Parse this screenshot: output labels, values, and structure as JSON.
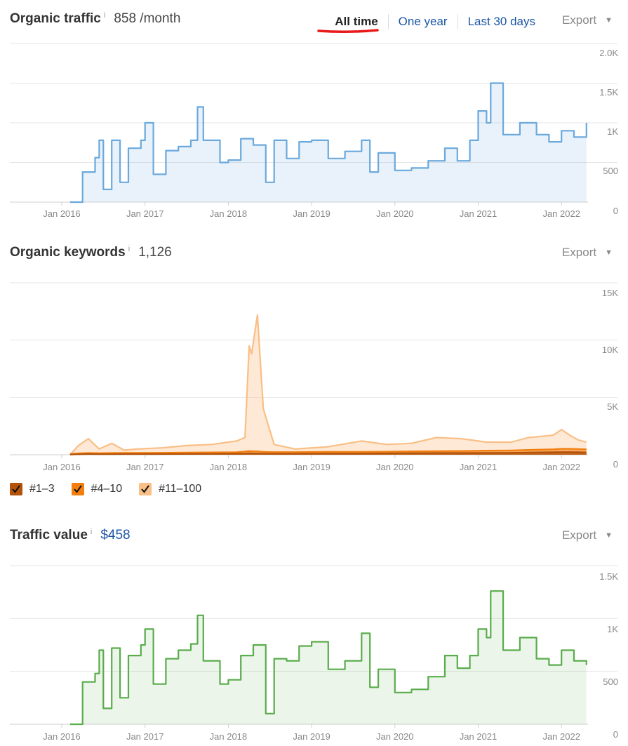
{
  "range_tabs": {
    "all_time": "All time",
    "one_year": "One year",
    "last_30_days": "Last 30 days"
  },
  "colors": {
    "link": "#1c57a5",
    "traffic": "#6aa9dd",
    "keywords_top3": "#b3520a",
    "keywords_4_10": "#f27e0e",
    "keywords_11_100": "#f9bf86",
    "value": "#5aac4c",
    "active_underline": "#e8191a"
  },
  "x_ticks": [
    "Jan 2016",
    "Jan 2017",
    "Jan 2018",
    "Jan 2019",
    "Jan 2020",
    "Jan 2021",
    "Jan 2022"
  ],
  "organic_traffic": {
    "title": "Organic traffic",
    "info": "i",
    "value": "858 /month",
    "export": "Export",
    "y_ticks": [
      "2.0K",
      "1.5K",
      "1K",
      "500",
      "0"
    ]
  },
  "organic_keywords": {
    "title": "Organic keywords",
    "info": "i",
    "value": "1,126",
    "export": "Export",
    "y_ticks": [
      "15K",
      "10K",
      "5K",
      "0"
    ],
    "legend": [
      "#1–3",
      "#4–10",
      "#11–100"
    ]
  },
  "traffic_value": {
    "title": "Traffic value",
    "info": "i",
    "value": "$458",
    "export": "Export",
    "y_ticks": [
      "1.5K",
      "1K",
      "500",
      "0"
    ]
  },
  "chart_data": [
    {
      "type": "area",
      "title": "Organic traffic",
      "ylim": [
        0,
        2000
      ],
      "x": [
        2016.1,
        2016.25,
        2016.4,
        2016.45,
        2016.5,
        2016.6,
        2016.7,
        2016.8,
        2016.95,
        2017.0,
        2017.1,
        2017.25,
        2017.4,
        2017.55,
        2017.63,
        2017.7,
        2017.9,
        2018.0,
        2018.15,
        2018.3,
        2018.45,
        2018.55,
        2018.7,
        2018.85,
        2019.0,
        2019.2,
        2019.4,
        2019.6,
        2019.7,
        2019.8,
        2020.0,
        2020.2,
        2020.4,
        2020.6,
        2020.75,
        2020.9,
        2021.0,
        2021.1,
        2021.15,
        2021.3,
        2021.5,
        2021.7,
        2021.85,
        2022.0,
        2022.15,
        2022.3
      ],
      "series": [
        {
          "values": [
            0,
            380,
            560,
            780,
            160,
            780,
            250,
            680,
            780,
            1000,
            350,
            650,
            700,
            780,
            1200,
            780,
            500,
            530,
            800,
            720,
            250,
            780,
            550,
            760,
            780,
            550,
            640,
            780,
            380,
            620,
            400,
            430,
            520,
            680,
            520,
            780,
            1150,
            1000,
            1500,
            850,
            1000,
            850,
            760,
            900,
            820,
            1000
          ]
        }
      ]
    },
    {
      "type": "area",
      "title": "Organic keywords",
      "ylim": [
        0,
        15000
      ],
      "x": [
        2016.1,
        2016.2,
        2016.32,
        2016.45,
        2016.6,
        2016.75,
        2016.9,
        2017.2,
        2017.5,
        2017.8,
        2018.1,
        2018.2,
        2018.25,
        2018.28,
        2018.35,
        2018.42,
        2018.55,
        2018.8,
        2019.2,
        2019.6,
        2019.9,
        2020.2,
        2020.5,
        2020.8,
        2021.1,
        2021.4,
        2021.6,
        2021.9,
        2022.0,
        2022.1,
        2022.2,
        2022.3
      ],
      "series": [
        {
          "name": "#1–3",
          "values": [
            20,
            40,
            60,
            50,
            50,
            60,
            60,
            60,
            70,
            80,
            90,
            110,
            130,
            120,
            110,
            100,
            90,
            90,
            100,
            110,
            120,
            140,
            150,
            150,
            160,
            170,
            190,
            220,
            230,
            230,
            220,
            200
          ]
        },
        {
          "name": "#4–10",
          "values": [
            60,
            120,
            150,
            140,
            150,
            160,
            160,
            170,
            190,
            210,
            220,
            280,
            330,
            320,
            300,
            260,
            230,
            230,
            250,
            260,
            270,
            300,
            320,
            330,
            360,
            380,
            420,
            480,
            520,
            520,
            500,
            480
          ]
        },
        {
          "name": "#11–100",
          "values": [
            0,
            800,
            1400,
            500,
            1000,
            400,
            500,
            600,
            800,
            900,
            1200,
            1500,
            9500,
            8800,
            12200,
            4000,
            900,
            500,
            700,
            1200,
            900,
            1000,
            1500,
            1400,
            1100,
            1100,
            1500,
            1700,
            2200,
            1700,
            1300,
            1100
          ]
        }
      ]
    },
    {
      "type": "area",
      "title": "Traffic value",
      "ylim": [
        0,
        1500
      ],
      "x": [
        2016.1,
        2016.25,
        2016.4,
        2016.45,
        2016.5,
        2016.6,
        2016.7,
        2016.8,
        2016.95,
        2017.0,
        2017.1,
        2017.25,
        2017.4,
        2017.55,
        2017.63,
        2017.7,
        2017.9,
        2018.0,
        2018.15,
        2018.3,
        2018.45,
        2018.55,
        2018.7,
        2018.85,
        2019.0,
        2019.2,
        2019.4,
        2019.6,
        2019.7,
        2019.8,
        2020.0,
        2020.2,
        2020.4,
        2020.6,
        2020.75,
        2020.9,
        2021.0,
        2021.1,
        2021.15,
        2021.3,
        2021.5,
        2021.7,
        2021.85,
        2022.0,
        2022.15,
        2022.3
      ],
      "series": [
        {
          "values": [
            0,
            400,
            480,
            700,
            150,
            720,
            250,
            650,
            750,
            900,
            380,
            620,
            700,
            760,
            1030,
            600,
            380,
            420,
            650,
            750,
            100,
            620,
            600,
            740,
            780,
            520,
            600,
            860,
            350,
            520,
            300,
            330,
            450,
            650,
            530,
            650,
            900,
            820,
            1260,
            700,
            820,
            620,
            560,
            700,
            600,
            560
          ]
        }
      ]
    }
  ]
}
